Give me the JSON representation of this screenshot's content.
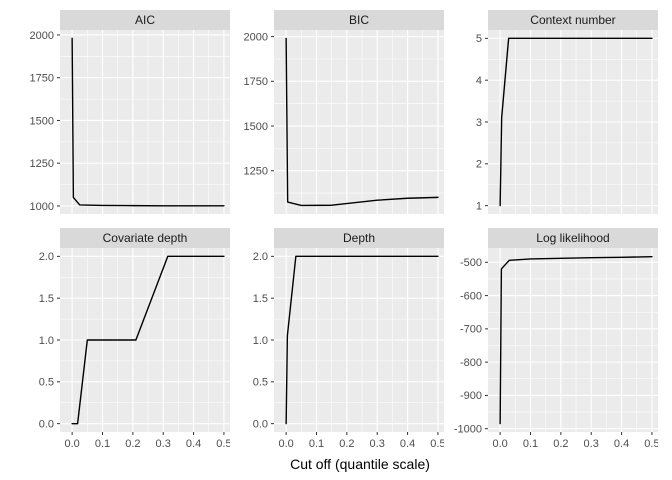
{
  "chart_data": {
    "type": "line",
    "xlabel": "Cut off (quantile scale)",
    "x_axis": {
      "lim": [
        -0.04,
        0.52
      ],
      "ticks": [
        0,
        0.1,
        0.2,
        0.3,
        0.4,
        0.5
      ],
      "tick_labels": [
        "0.0",
        "0.1",
        "0.2",
        "0.3",
        "0.4",
        "0.5"
      ],
      "minor": [
        0.05,
        0.15,
        0.25,
        0.35,
        0.45
      ]
    },
    "panels": [
      {
        "title": "AIC",
        "ylim": [
          953,
          2029
        ],
        "yticks": {
          "values": [
            1000,
            1250,
            1500,
            1750,
            2000
          ],
          "labels": [
            "1000",
            "1250",
            "1500",
            "1750",
            "2000"
          ],
          "minor": [
            1125,
            1375,
            1625,
            1875
          ]
        },
        "x": [
          0,
          0.004,
          0.025,
          0.1,
          0.2,
          0.3,
          0.5
        ],
        "y": [
          1980,
          1050,
          1006,
          1003,
          1002,
          1001,
          1001
        ]
      },
      {
        "title": "BIC",
        "ylim": [
          1008,
          2037
        ],
        "yticks": {
          "values": [
            1250,
            1500,
            1750,
            2000
          ],
          "labels": [
            "1250",
            "1500",
            "1750",
            "2000"
          ],
          "minor": [
            1125,
            1375,
            1625,
            1875
          ]
        },
        "x": [
          0,
          0.005,
          0.05,
          0.15,
          0.3,
          0.4,
          0.5
        ],
        "y": [
          1990,
          1075,
          1056,
          1057,
          1085,
          1096,
          1101
        ]
      },
      {
        "title": "Context number",
        "ylim": [
          0.8,
          5.2
        ],
        "yticks": {
          "values": [
            1,
            2,
            3,
            4,
            5
          ],
          "labels": [
            "1",
            "2",
            "3",
            "4",
            "5"
          ],
          "minor": [
            1.5,
            2.5,
            3.5,
            4.5
          ]
        },
        "x": [
          0,
          0.005,
          0.028,
          0.1,
          0.5
        ],
        "y": [
          1,
          3.1,
          5,
          5,
          5
        ]
      },
      {
        "title": "Covariate depth",
        "ylim": [
          -0.1,
          2.1
        ],
        "yticks": {
          "values": [
            0,
            0.5,
            1,
            1.5,
            2
          ],
          "labels": [
            "0.0",
            "0.5",
            "1.0",
            "1.5",
            "2.0"
          ],
          "minor": [
            0.25,
            0.75,
            1.25,
            1.75
          ]
        },
        "x": [
          0,
          0.018,
          0.05,
          0.21,
          0.315,
          0.5
        ],
        "y": [
          0,
          0,
          1,
          1,
          2,
          2
        ]
      },
      {
        "title": "Depth",
        "ylim": [
          -0.1,
          2.1
        ],
        "yticks": {
          "values": [
            0,
            0.5,
            1,
            1.5,
            2
          ],
          "labels": [
            "0.0",
            "0.5",
            "1.0",
            "1.5",
            "2.0"
          ],
          "minor": [
            0.25,
            0.75,
            1.25,
            1.75
          ]
        },
        "x": [
          0,
          0.004,
          0.032,
          0.1,
          0.5
        ],
        "y": [
          0,
          1.05,
          2,
          2,
          2
        ]
      },
      {
        "title": "Log likelihood",
        "ylim": [
          -1010,
          -457
        ],
        "yticks": {
          "values": [
            -500,
            -600,
            -700,
            -800,
            -900,
            -1000
          ],
          "labels": [
            "-500",
            "-600",
            "-700",
            "-800",
            "-900",
            "-1000"
          ],
          "minor": [
            -550,
            -650,
            -750,
            -850,
            -950
          ]
        },
        "x": [
          0,
          0.004,
          0.03,
          0.1,
          0.2,
          0.3,
          0.4,
          0.5
        ],
        "y": [
          -985,
          -520,
          -494,
          -490,
          -488,
          -486,
          -485,
          -483
        ]
      }
    ]
  },
  "colors": {
    "panel_bg": "#EBEBEB",
    "strip_bg": "#D9D9D9",
    "grid": "#FFFFFF",
    "line": "#000000",
    "tick_mark": "#333333",
    "tick_label": "#4D4D4D",
    "strip_text": "#1A1A1A",
    "axis_title": "#000000"
  }
}
